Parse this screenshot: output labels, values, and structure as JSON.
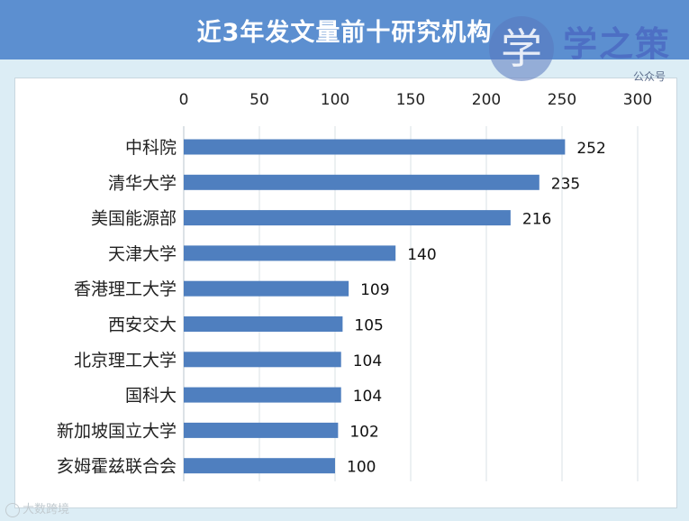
{
  "chart_data": {
    "type": "bar",
    "orientation": "horizontal",
    "title": "近3年发文量前十研究机构",
    "categories": [
      "中科院",
      "清华大学",
      "美国能源部",
      "天津大学",
      "香港理工大学",
      "西安交大",
      "北京理工大学",
      "国科大",
      "新加坡国立大学",
      "亥姆霍兹联合会"
    ],
    "values": [
      252,
      235,
      216,
      140,
      109,
      105,
      104,
      104,
      102,
      100
    ],
    "xlim": [
      0,
      300
    ],
    "xticks": [
      "0",
      "50",
      "100",
      "150",
      "200",
      "250",
      "300"
    ],
    "axis_position": "top",
    "grid": true,
    "data_labels": true,
    "bar_color": "#4f7fbf",
    "grid_color": "#d9e1e6"
  },
  "watermark": {
    "seal_glyph": "学",
    "brand": "学之策",
    "sub": "公众号"
  },
  "source_mark": {
    "text": "大数跨境"
  },
  "colors": {
    "title_bar": "#5c8fd0",
    "background": "#dcedf5",
    "panel": "#ffffff"
  }
}
